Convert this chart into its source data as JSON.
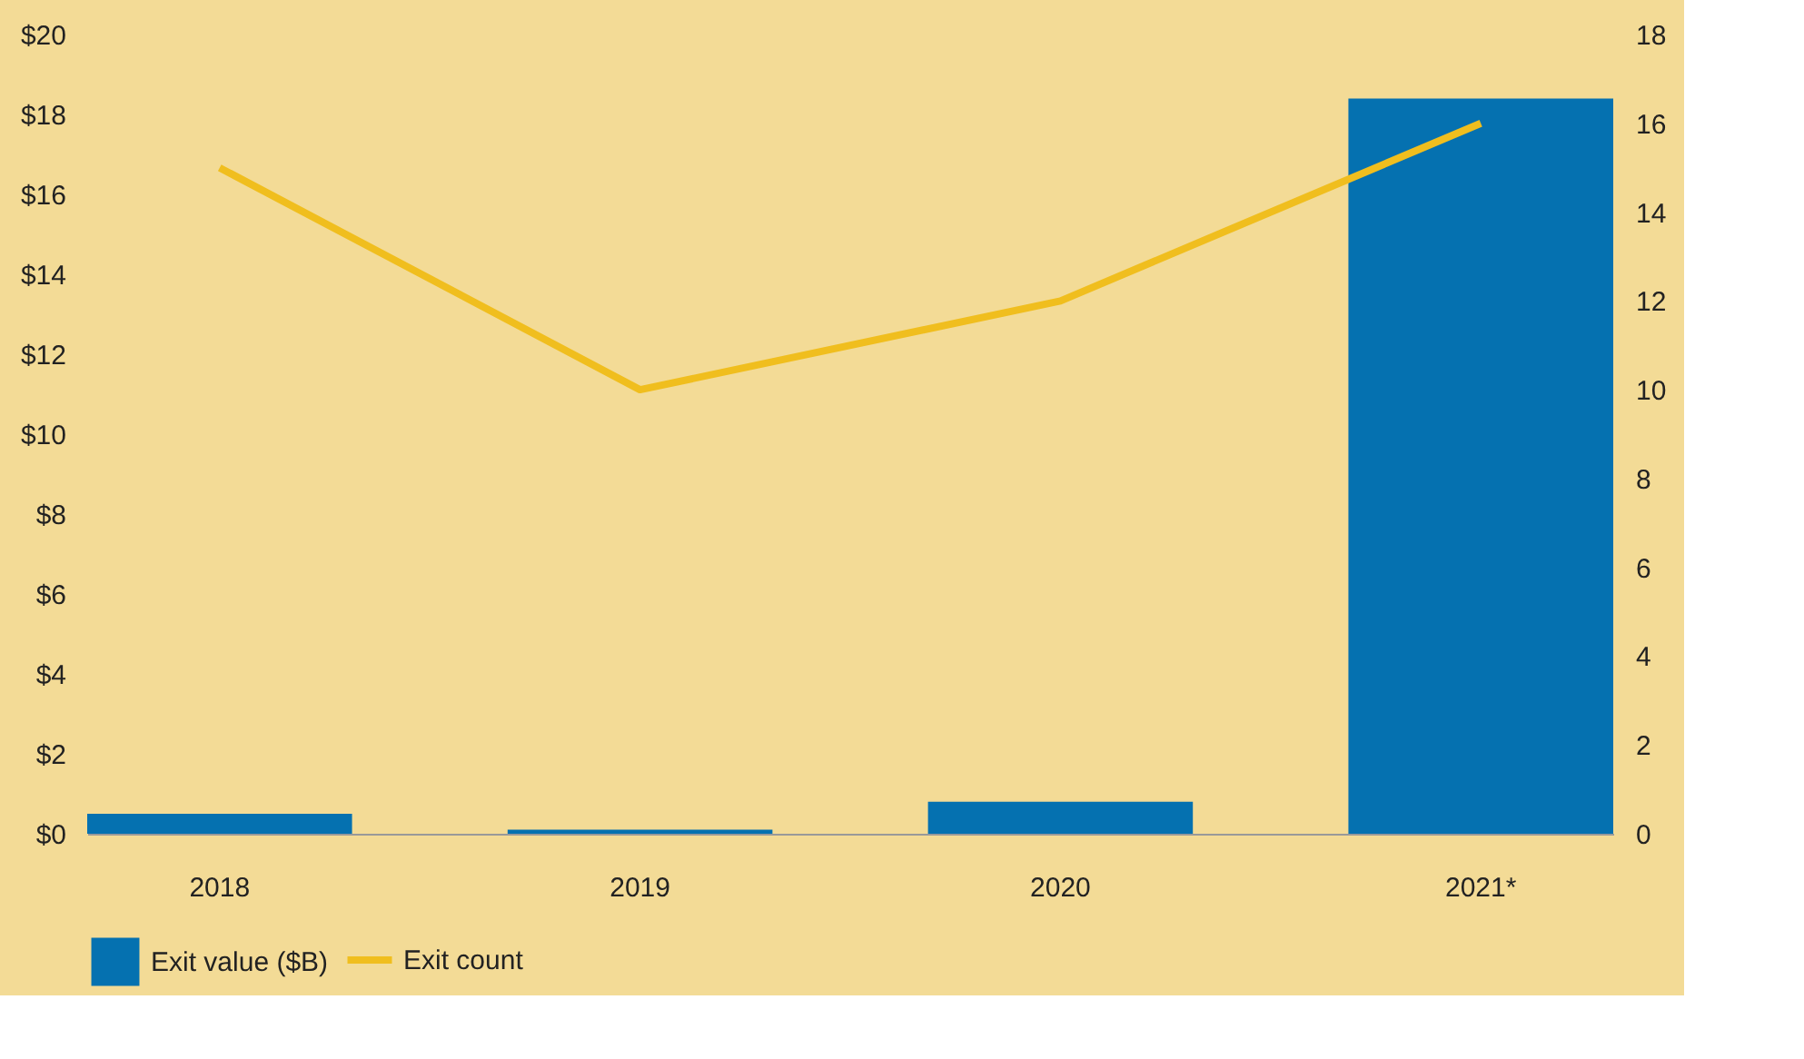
{
  "chart_data": {
    "type": "bar",
    "categories": [
      "2018",
      "2019",
      "2020",
      "2021*"
    ],
    "series": [
      {
        "name": "Exit value ($B)",
        "color": "#0571b0",
        "values": [
          0.5,
          0.1,
          0.8,
          18.4
        ]
      },
      {
        "name": "Exit count",
        "type": "line",
        "axis": "y2",
        "color": "#f0be1e",
        "values": [
          15,
          10,
          12,
          16
        ]
      }
    ],
    "ylim": [
      0,
      20
    ],
    "yticks": [
      {
        "value": 0,
        "label": "$0"
      },
      {
        "value": 2,
        "label": "$2"
      },
      {
        "value": 4,
        "label": "$4"
      },
      {
        "value": 6,
        "label": "$6"
      },
      {
        "value": 8,
        "label": "$8"
      },
      {
        "value": 10,
        "label": "$10"
      },
      {
        "value": 12,
        "label": "$12"
      },
      {
        "value": 14,
        "label": "$14"
      },
      {
        "value": 16,
        "label": "$16"
      },
      {
        "value": 18,
        "label": "$18"
      },
      {
        "value": 20,
        "label": "$20"
      }
    ],
    "y2lim": [
      0,
      18
    ],
    "y2ticks": [
      0,
      2,
      4,
      6,
      8,
      10,
      12,
      14,
      16,
      18
    ],
    "grid": false,
    "legend": "bottom",
    "line_style": "solid",
    "marker": "none"
  }
}
